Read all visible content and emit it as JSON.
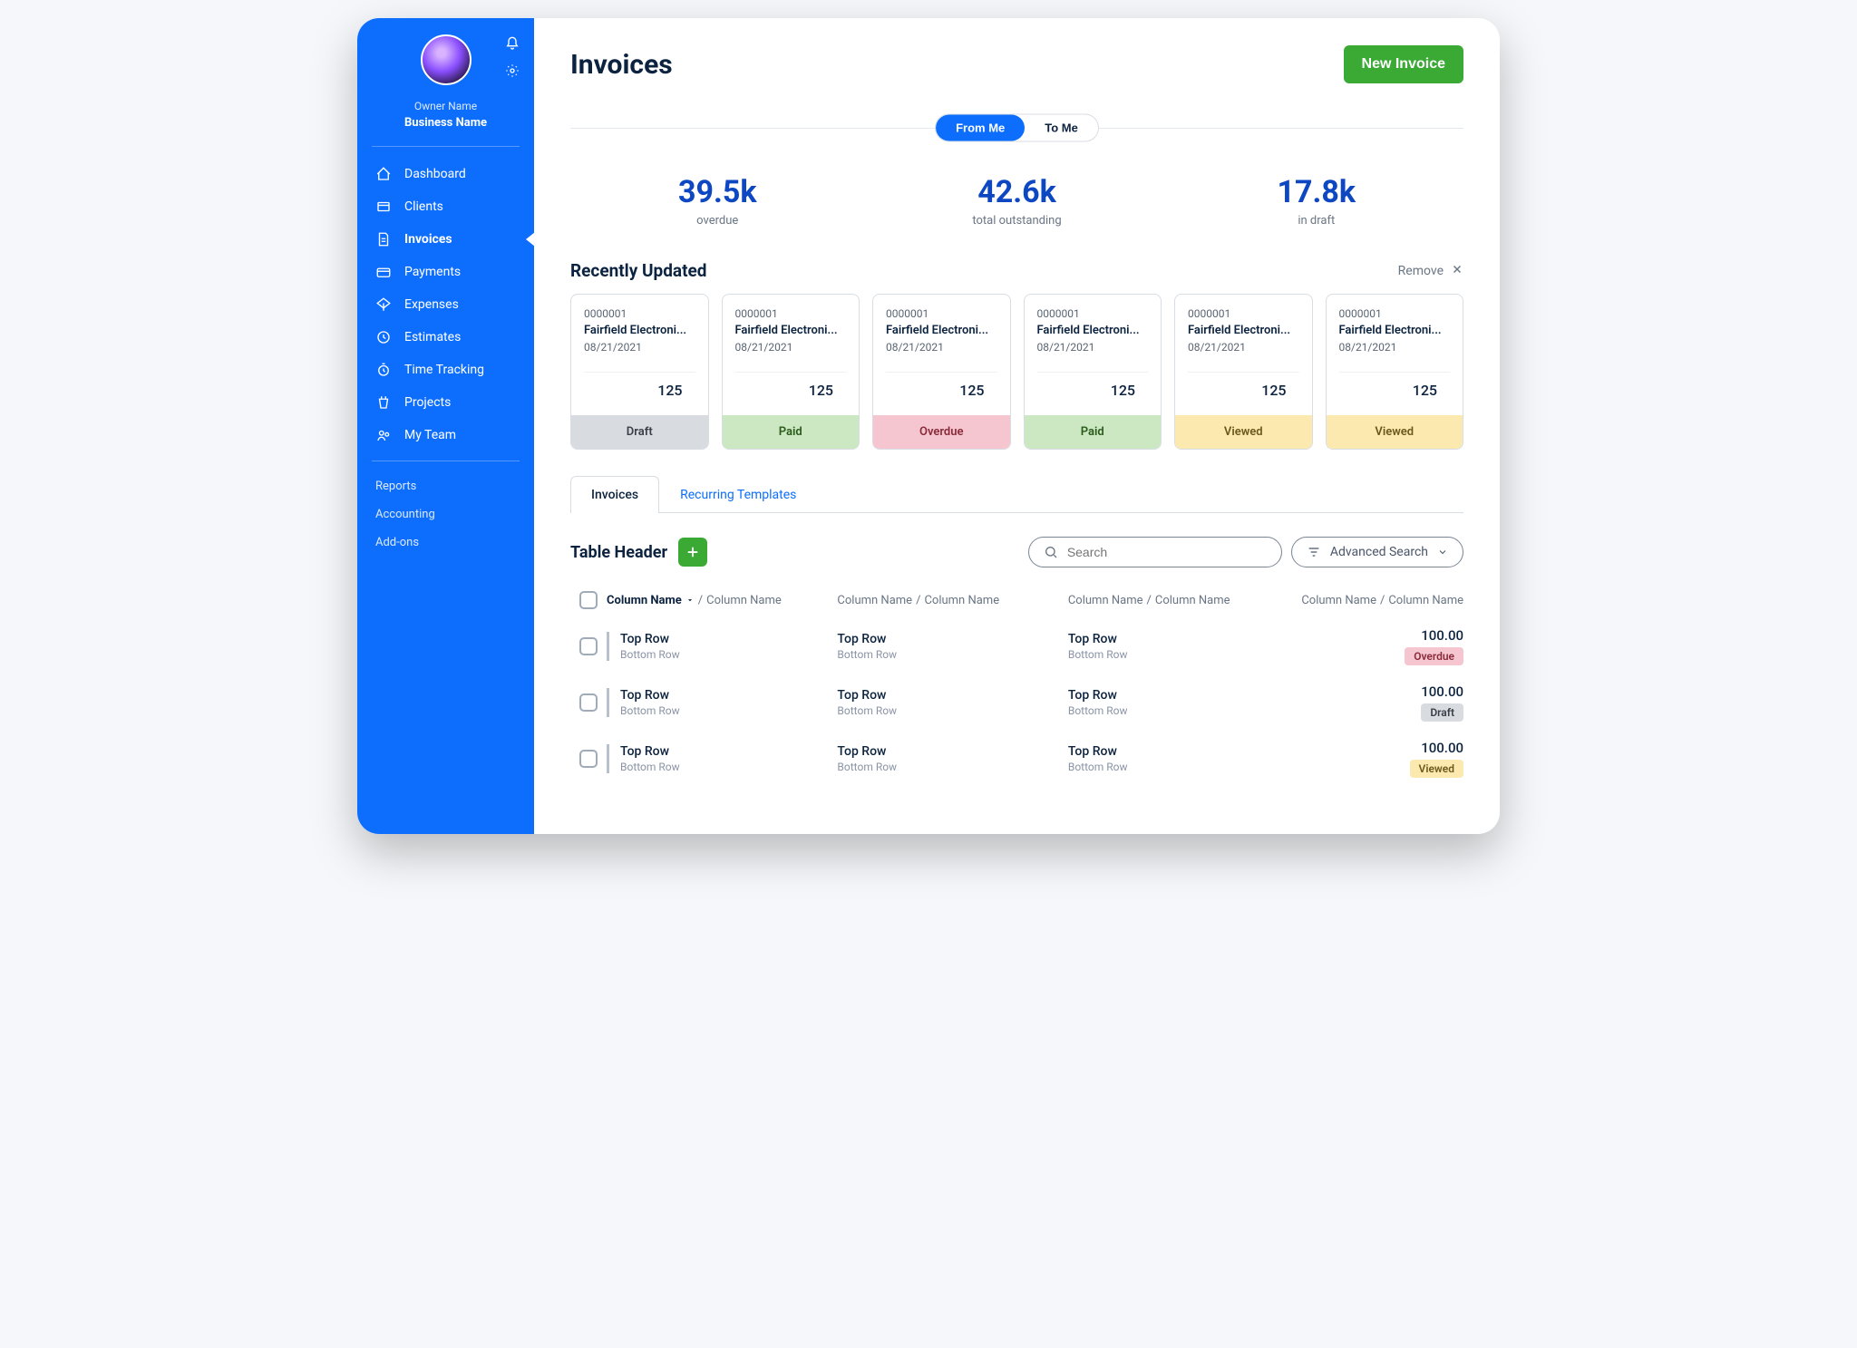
{
  "sidebar": {
    "owner_name": "Owner Name",
    "business_name": "Business Name",
    "nav": [
      {
        "label": "Dashboard",
        "icon": "dashboard"
      },
      {
        "label": "Clients",
        "icon": "clients"
      },
      {
        "label": "Invoices",
        "icon": "invoices",
        "active": true
      },
      {
        "label": "Payments",
        "icon": "payments"
      },
      {
        "label": "Expenses",
        "icon": "expenses"
      },
      {
        "label": "Estimates",
        "icon": "estimates"
      },
      {
        "label": "Time Tracking",
        "icon": "time"
      },
      {
        "label": "Projects",
        "icon": "projects"
      },
      {
        "label": "My Team",
        "icon": "team"
      }
    ],
    "secondary": [
      "Reports",
      "Accounting",
      "Add-ons"
    ]
  },
  "header": {
    "title": "Invoices",
    "new_button": "New Invoice",
    "toggle": {
      "from_me": "From Me",
      "to_me": "To Me",
      "active": "from_me"
    }
  },
  "stats": [
    {
      "value": "39.5k",
      "label": "overdue"
    },
    {
      "value": "42.6k",
      "label": "total outstanding"
    },
    {
      "value": "17.8k",
      "label": "in draft"
    }
  ],
  "recent": {
    "title": "Recently Updated",
    "remove_label": "Remove",
    "cards": [
      {
        "num": "0000001",
        "client": "Fairfield Electroni...",
        "date": "08/21/2021",
        "amount": "125",
        "status": "Draft",
        "status_class": "draft"
      },
      {
        "num": "0000001",
        "client": "Fairfield Electroni...",
        "date": "08/21/2021",
        "amount": "125",
        "status": "Paid",
        "status_class": "paid"
      },
      {
        "num": "0000001",
        "client": "Fairfield Electroni...",
        "date": "08/21/2021",
        "amount": "125",
        "status": "Overdue",
        "status_class": "overdue"
      },
      {
        "num": "0000001",
        "client": "Fairfield Electroni...",
        "date": "08/21/2021",
        "amount": "125",
        "status": "Paid",
        "status_class": "paid"
      },
      {
        "num": "0000001",
        "client": "Fairfield Electroni...",
        "date": "08/21/2021",
        "amount": "125",
        "status": "Viewed",
        "status_class": "viewed"
      },
      {
        "num": "0000001",
        "client": "Fairfield Electroni...",
        "date": "08/21/2021",
        "amount": "125",
        "status": "Viewed",
        "status_class": "viewed"
      }
    ]
  },
  "tabs": {
    "invoices": "Invoices",
    "recurring": "Recurring Templates"
  },
  "table": {
    "header_title": "Table Header",
    "search_placeholder": "Search",
    "adv_search": "Advanced Search",
    "columns": {
      "primary": "Column Name",
      "secondary": "Column Name"
    },
    "rows": [
      {
        "top": "Top Row",
        "bottom": "Bottom Row",
        "amount": "100.00",
        "status": "Overdue",
        "status_class": "overdue"
      },
      {
        "top": "Top Row",
        "bottom": "Bottom Row",
        "amount": "100.00",
        "status": "Draft",
        "status_class": "draft"
      },
      {
        "top": "Top Row",
        "bottom": "Bottom Row",
        "amount": "100.00",
        "status": "Viewed",
        "status_class": "viewed"
      }
    ]
  },
  "colors": {
    "sidebar": "#0d6efd",
    "primary_text": "#0c2340",
    "accent_blue": "#0d47c1",
    "success": "#3aaa35"
  }
}
